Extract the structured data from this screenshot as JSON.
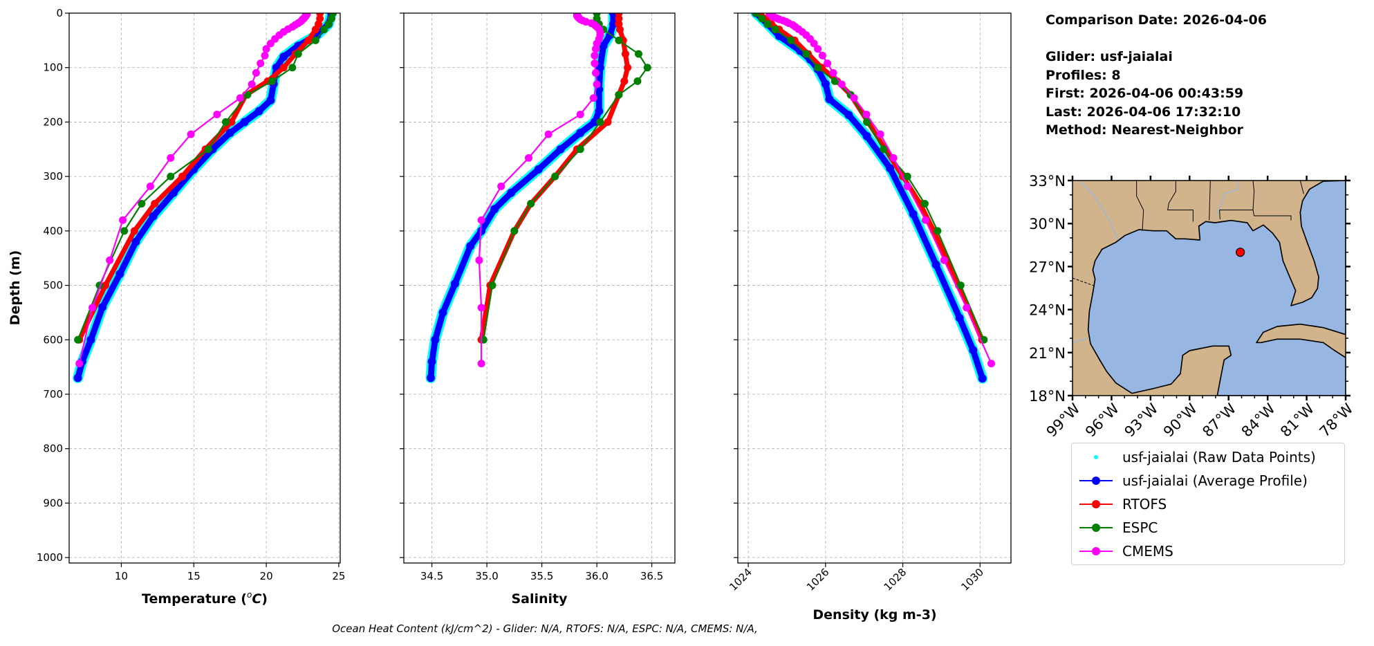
{
  "info": {
    "comparison_date": "Comparison Date: 2026-04-06",
    "glider": "Glider: usf-jaialai",
    "profiles": "Profiles: 8",
    "first": "First: 2026-04-06 00:43:59",
    "last": "Last: 2026-04-06 17:32:10",
    "method": "Method: Nearest-Neighbor"
  },
  "footer": "Ocean Heat Content (kJ/cm^2) - Glider: N/A,  RTOFS: N/A,  ESPC: N/A,  CMEMS: N/A,",
  "legend": [
    {
      "label": "usf-jaialai (Raw Data Points)",
      "color": "#00ffff",
      "style": "point"
    },
    {
      "label": "usf-jaialai (Average Profile)",
      "color": "#0000ff",
      "style": "line-marker"
    },
    {
      "label": "RTOFS",
      "color": "#ff0000",
      "style": "line-marker"
    },
    {
      "label": "ESPC",
      "color": "#008000",
      "style": "line-marker"
    },
    {
      "label": "CMEMS",
      "color": "#ff00ff",
      "style": "line-marker"
    }
  ],
  "chart_data": [
    {
      "type": "line",
      "id": "temperature",
      "xlabel_prefix": "Temperature (",
      "xlabel_degree": "o",
      "xlabel_unit": "C",
      "xlabel_suffix": ")",
      "ylabel": "Depth (m)",
      "xlim": [
        6.4,
        25.1
      ],
      "ylim": [
        1010,
        0
      ],
      "xticks": [
        "10",
        "15",
        "20",
        "25"
      ],
      "yticks": [
        "0",
        "100",
        "200",
        "300",
        "400",
        "500",
        "600",
        "700",
        "800",
        "900",
        "1000"
      ],
      "grid": true,
      "series": [
        {
          "name": "usf-jaialai (Average Profile)",
          "color": "#0000ff",
          "depth": [
            0,
            20,
            40,
            60,
            80,
            100,
            130,
            160,
            180,
            200,
            220,
            250,
            287,
            330,
            373,
            420,
            479,
            540,
            600,
            640,
            670
          ],
          "values": [
            24.5,
            24.3,
            23.5,
            22.2,
            21.2,
            20.7,
            20.5,
            20.3,
            19.5,
            18.5,
            17.5,
            16.3,
            15.0,
            13.6,
            12.2,
            11.0,
            9.9,
            8.7,
            7.9,
            7.3,
            7.0
          ]
        },
        {
          "name": "RTOFS",
          "color": "#ff0000",
          "depth": [
            0,
            10,
            20,
            30,
            50,
            75,
            100,
            125,
            150,
            200,
            250,
            300,
            350,
            400,
            500,
            600
          ],
          "values": [
            23.7,
            23.7,
            23.6,
            23.4,
            22.9,
            22.0,
            21.2,
            20.1,
            18.6,
            17.6,
            15.8,
            14.2,
            12.3,
            10.9,
            8.9,
            7.1
          ]
        },
        {
          "name": "ESPC",
          "color": "#008000",
          "depth": [
            0,
            10,
            20,
            30,
            50,
            75,
            100,
            125,
            150,
            200,
            250,
            300,
            350,
            400,
            500,
            600
          ],
          "values": [
            24.6,
            24.5,
            24.3,
            24.0,
            23.4,
            22.2,
            21.8,
            20.4,
            18.7,
            17.2,
            16.0,
            13.4,
            11.4,
            10.2,
            8.5,
            7.0
          ]
        },
        {
          "name": "CMEMS",
          "color": "#ff00ff",
          "depth": [
            0.5,
            1.5,
            2.6,
            3.8,
            5.1,
            6.4,
            7.9,
            9.6,
            11.4,
            13.5,
            15.8,
            18.5,
            21.6,
            25.2,
            29.4,
            34.4,
            40.3,
            47.4,
            55.8,
            65.8,
            77.9,
            92.3,
            109.7,
            130.7,
            155.9,
            186.1,
            222.5,
            266.0,
            318.1,
            380.2,
            453.9,
            541.1,
            643.6
          ],
          "values": [
            22.8,
            22.8,
            22.8,
            22.75,
            22.7,
            22.7,
            22.65,
            22.6,
            22.5,
            22.45,
            22.35,
            22.2,
            22.0,
            21.8,
            21.5,
            21.2,
            20.9,
            20.6,
            20.3,
            20.0,
            19.9,
            19.6,
            19.3,
            19.0,
            18.2,
            16.6,
            14.8,
            13.4,
            12.0,
            10.1,
            9.2,
            8.0,
            7.1
          ]
        }
      ]
    },
    {
      "type": "line",
      "id": "salinity",
      "xlabel": "Salinity",
      "xlim": [
        34.245,
        36.71
      ],
      "ylim": [
        1010,
        0
      ],
      "xticks": [
        "34.5",
        "35.0",
        "35.5",
        "36.0",
        "36.5"
      ],
      "grid": true,
      "series": [
        {
          "name": "usf-jaialai (Average Profile)",
          "color": "#0000ff",
          "depth": [
            0,
            20,
            40,
            60,
            100,
            140,
            180,
            200,
            220,
            250,
            287,
            330,
            360,
            400,
            428,
            497,
            550,
            600,
            640,
            670
          ],
          "values": [
            36.15,
            36.15,
            36.12,
            36.06,
            36.03,
            36.02,
            36.02,
            35.98,
            35.85,
            35.67,
            35.47,
            35.22,
            35.07,
            34.95,
            34.85,
            34.71,
            34.6,
            34.53,
            34.5,
            34.49
          ]
        },
        {
          "name": "RTOFS",
          "color": "#ff0000",
          "depth": [
            0,
            10,
            20,
            30,
            50,
            75,
            100,
            125,
            150,
            200,
            250,
            300,
            350,
            400,
            500,
            600
          ],
          "values": [
            36.2,
            36.2,
            36.2,
            36.21,
            36.24,
            36.26,
            36.28,
            36.25,
            36.2,
            36.1,
            35.82,
            35.62,
            35.4,
            35.25,
            35.03,
            34.95
          ]
        },
        {
          "name": "ESPC",
          "color": "#008000",
          "depth": [
            0,
            10,
            20,
            30,
            50,
            75,
            100,
            125,
            150,
            200,
            250,
            300,
            350,
            400,
            500,
            600
          ],
          "values": [
            36.0,
            36.0,
            36.02,
            36.06,
            36.2,
            36.38,
            36.46,
            36.37,
            36.2,
            36.03,
            35.85,
            35.62,
            35.4,
            35.25,
            35.05,
            34.97
          ]
        },
        {
          "name": "CMEMS",
          "color": "#ff00ff",
          "depth": [
            0.5,
            1.5,
            2.6,
            3.8,
            5.1,
            6.4,
            7.9,
            9.6,
            11.4,
            13.5,
            15.8,
            18.5,
            21.6,
            25.2,
            29.4,
            34.4,
            40.3,
            47.4,
            55.8,
            65.8,
            77.9,
            92.3,
            109.7,
            130.7,
            155.9,
            186.1,
            222.5,
            266.0,
            318.1,
            380.2,
            453.9,
            541.1,
            643.6
          ],
          "values": [
            35.82,
            35.82,
            35.82,
            35.82,
            35.82,
            35.83,
            35.83,
            35.84,
            35.85,
            35.87,
            35.9,
            35.95,
            35.98,
            36.0,
            36.02,
            36.03,
            36.03,
            36.02,
            36.0,
            35.99,
            35.98,
            35.98,
            35.99,
            36.0,
            35.97,
            35.85,
            35.56,
            35.38,
            35.13,
            34.95,
            34.93,
            34.95,
            34.95
          ]
        }
      ]
    },
    {
      "type": "line",
      "id": "density",
      "xlabel": "Density (kg m-3)",
      "xlim": [
        1023.73,
        1030.8
      ],
      "ylim": [
        1010,
        0
      ],
      "xticks": [
        "1024",
        "1026",
        "1028",
        "1030"
      ],
      "grid": true,
      "series": [
        {
          "name": "usf-jaialai (Average Profile)",
          "color": "#0000ff",
          "depth": [
            0,
            20,
            42,
            69,
            85,
            103,
            130,
            158,
            187,
            226,
            285,
            369,
            462,
            560,
            619,
            671
          ],
          "values": [
            1024.2,
            1024.5,
            1024.8,
            1025.34,
            1025.6,
            1025.8,
            1026.0,
            1026.1,
            1026.6,
            1027.07,
            1027.67,
            1028.27,
            1028.86,
            1029.47,
            1029.82,
            1030.06
          ]
        },
        {
          "name": "RTOFS",
          "color": "#ff0000",
          "depth": [
            0,
            10,
            20,
            30,
            50,
            75,
            100,
            125,
            150,
            200,
            250,
            300,
            350,
            400,
            500,
            600
          ],
          "values": [
            1024.3,
            1024.45,
            1024.6,
            1024.8,
            1025.2,
            1025.55,
            1025.9,
            1026.3,
            1026.65,
            1027.1,
            1027.55,
            1028.0,
            1028.45,
            1028.8,
            1029.45,
            1030.05
          ]
        },
        {
          "name": "ESPC",
          "color": "#008000",
          "depth": [
            0,
            10,
            20,
            30,
            50,
            75,
            100,
            125,
            150,
            200,
            250,
            300,
            350,
            400,
            500,
            600
          ],
          "values": [
            1024.2,
            1024.35,
            1024.5,
            1024.7,
            1025.1,
            1025.5,
            1025.8,
            1026.24,
            1026.65,
            1027.07,
            1027.5,
            1028.12,
            1028.57,
            1028.9,
            1029.5,
            1030.1
          ]
        },
        {
          "name": "CMEMS",
          "color": "#ff00ff",
          "depth": [
            0.5,
            1.5,
            2.6,
            3.8,
            5.1,
            6.4,
            7.9,
            9.6,
            11.4,
            13.5,
            15.8,
            18.5,
            21.6,
            25.2,
            29.4,
            34.4,
            40.3,
            47.4,
            55.8,
            65.8,
            77.9,
            92.3,
            109.7,
            130.7,
            155.9,
            186.1,
            222.5,
            266.0,
            318.1,
            380.2,
            453.9,
            541.1,
            643.6
          ],
          "values": [
            1024.55,
            1024.56,
            1024.58,
            1024.6,
            1024.62,
            1024.64,
            1024.68,
            1024.75,
            1024.8,
            1024.9,
            1024.98,
            1025.05,
            1025.15,
            1025.22,
            1025.3,
            1025.4,
            1025.5,
            1025.6,
            1025.7,
            1025.8,
            1025.92,
            1026.05,
            1026.2,
            1026.42,
            1026.74,
            1027.06,
            1027.42,
            1027.76,
            1028.12,
            1028.59,
            1029.07,
            1029.65,
            1030.29
          ]
        }
      ]
    }
  ],
  "map": {
    "lon_range": [
      -99,
      -78
    ],
    "lat_range": [
      18,
      33
    ],
    "lat_ticks": [
      "33°N",
      "30°N",
      "27°N",
      "24°N",
      "21°N",
      "18°N"
    ],
    "lon_ticks": [
      "99°W",
      "96°W",
      "93°W",
      "90°W",
      "87°W",
      "84°W",
      "81°W",
      "78°W"
    ],
    "glider_location": {
      "lon": -86.1,
      "lat": 28.0
    },
    "land_color": "#d2b48c",
    "ocean_color": "#97b6e1",
    "marker_color": "#ff0000"
  }
}
